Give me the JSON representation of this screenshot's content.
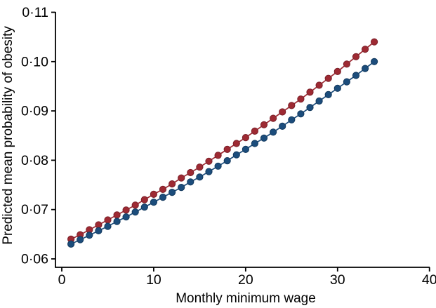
{
  "chart_data": {
    "type": "line",
    "title": "",
    "xlabel": "Monthly minimum wage",
    "ylabel": "Predicted mean probability of obesity",
    "xlim": [
      0,
      40
    ],
    "ylim": [
      0.06,
      0.11
    ],
    "grid": false,
    "legend": "none",
    "background": "#ffffff",
    "axis_color": "#000000",
    "x_ticks": {
      "values": [
        0,
        10,
        20,
        30,
        40
      ],
      "labels": [
        "0",
        "10",
        "20",
        "30",
        "40"
      ]
    },
    "y_ticks": {
      "values": [
        0.06,
        0.07,
        0.08,
        0.09,
        0.1,
        0.11
      ],
      "labels": [
        "0·06",
        "0·07",
        "0·08",
        "0·09",
        "0·10",
        "0·11"
      ]
    },
    "x": [
      1,
      2,
      3,
      4,
      5,
      6,
      7,
      8,
      9,
      10,
      11,
      12,
      13,
      14,
      15,
      16,
      17,
      18,
      19,
      20,
      21,
      22,
      23,
      24,
      25,
      26,
      27,
      28,
      29,
      30,
      31,
      32,
      33,
      34
    ],
    "series": [
      {
        "name": "upper-series-red",
        "color": "#9e2a33",
        "edge_color": "#7a2029",
        "marker": "circle",
        "values": [
          0.064,
          0.0649,
          0.0659,
          0.0669,
          0.0679,
          0.0689,
          0.0699,
          0.0709,
          0.072,
          0.0731,
          0.0741,
          0.0752,
          0.0764,
          0.0775,
          0.0786,
          0.0798,
          0.081,
          0.0822,
          0.0834,
          0.0846,
          0.0859,
          0.0872,
          0.0885,
          0.0898,
          0.0911,
          0.0924,
          0.0938,
          0.0952,
          0.0966,
          0.098,
          0.0995,
          0.101,
          0.1025,
          0.104
        ]
      },
      {
        "name": "lower-series-blue",
        "color": "#1c4d7c",
        "edge_color": "#143a5e",
        "marker": "circle",
        "values": [
          0.063,
          0.0639,
          0.0648,
          0.0657,
          0.0666,
          0.0676,
          0.0685,
          0.0695,
          0.0705,
          0.0715,
          0.0725,
          0.0735,
          0.0745,
          0.0756,
          0.0766,
          0.0777,
          0.0788,
          0.0799,
          0.0811,
          0.0822,
          0.0834,
          0.0845,
          0.0857,
          0.0869,
          0.0882,
          0.0894,
          0.0907,
          0.092,
          0.0933,
          0.0946,
          0.0959,
          0.0972,
          0.0986,
          0.1
        ]
      }
    ]
  }
}
